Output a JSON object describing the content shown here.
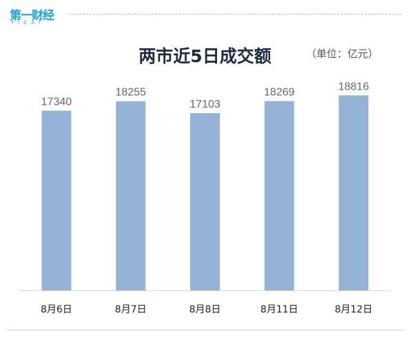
{
  "header": {
    "logo_text": "第一财经",
    "logo_sub": "YICAI"
  },
  "chart_data": {
    "type": "bar",
    "title": "两市近5日成交额",
    "unit": "（单位：亿元）",
    "categories": [
      "8月6日",
      "8月7日",
      "8月8日",
      "8月11日",
      "8月12日"
    ],
    "values": [
      17340,
      18255,
      17103,
      18269,
      18816
    ],
    "ylim": [
      0,
      19500
    ],
    "grid": false,
    "colors": {
      "bar": "#95b3d7",
      "value_label": "#666666",
      "axis": "#d9d9d9",
      "tick_label": "#222222"
    }
  }
}
